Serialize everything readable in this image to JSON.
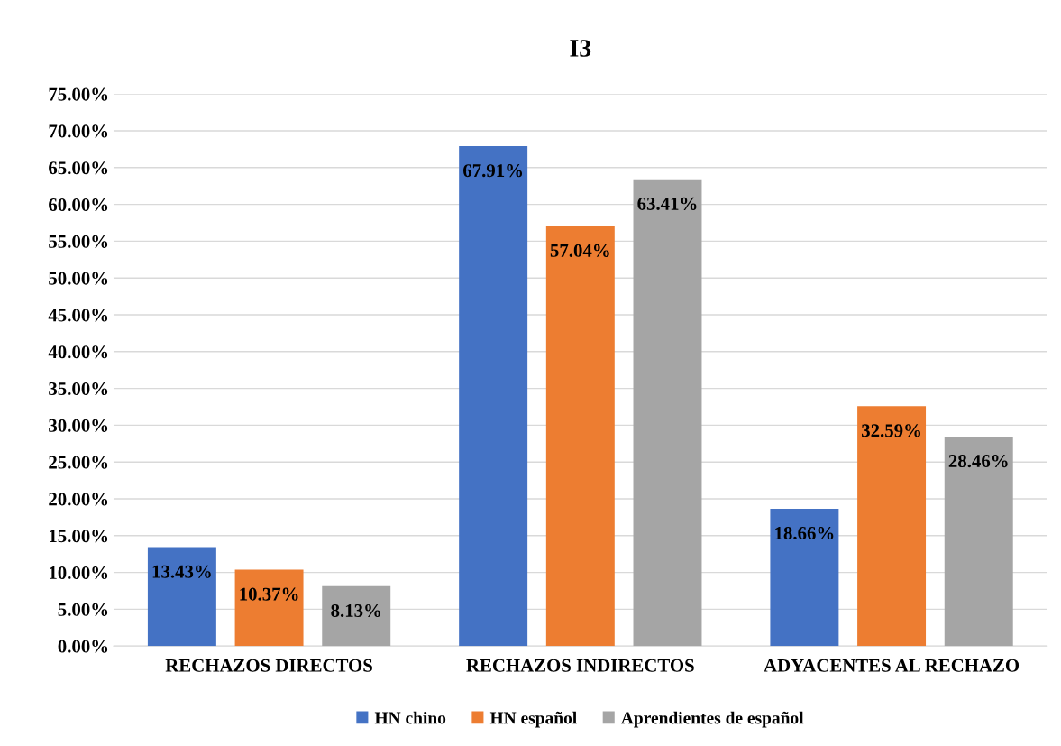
{
  "chart_data": {
    "type": "bar",
    "title": "I3",
    "categories": [
      "RECHAZOS DIRECTOS",
      "RECHAZOS INDIRECTOS",
      "ADYACENTES AL RECHAZO"
    ],
    "series": [
      {
        "name": "HN chino",
        "color": "#4472c4",
        "values": [
          13.43,
          67.91,
          18.66
        ],
        "value_labels": [
          "13.43%",
          "67.91%",
          "18.66%"
        ]
      },
      {
        "name": "HN español",
        "color": "#ed7d31",
        "values": [
          10.37,
          57.04,
          32.59
        ],
        "value_labels": [
          "10.37%",
          "57.04%",
          "32.59%"
        ]
      },
      {
        "name": "Aprendientes de español",
        "color": "#a5a5a5",
        "values": [
          8.13,
          63.41,
          28.46
        ],
        "value_labels": [
          "8.13%",
          "63.41%",
          "28.46%"
        ]
      }
    ],
    "ylim": [
      0,
      75
    ],
    "yticks": [
      {
        "value": 0,
        "label": "0.00%"
      },
      {
        "value": 5,
        "label": "5.00%"
      },
      {
        "value": 10,
        "label": "10.00%"
      },
      {
        "value": 15,
        "label": "15.00%"
      },
      {
        "value": 20,
        "label": "20.00%"
      },
      {
        "value": 25,
        "label": "25.00%"
      },
      {
        "value": 30,
        "label": "30.00%"
      },
      {
        "value": 35,
        "label": "35.00%"
      },
      {
        "value": 40,
        "label": "40.00%"
      },
      {
        "value": 45,
        "label": "45.00%"
      },
      {
        "value": 50,
        "label": "50.00%"
      },
      {
        "value": 55,
        "label": "55.00%"
      },
      {
        "value": 60,
        "label": "60.00%"
      },
      {
        "value": 65,
        "label": "65.00%"
      },
      {
        "value": 70,
        "label": "70.00%"
      },
      {
        "value": 75,
        "label": "75.00%"
      }
    ],
    "grid": "y",
    "legend": "bottom"
  }
}
